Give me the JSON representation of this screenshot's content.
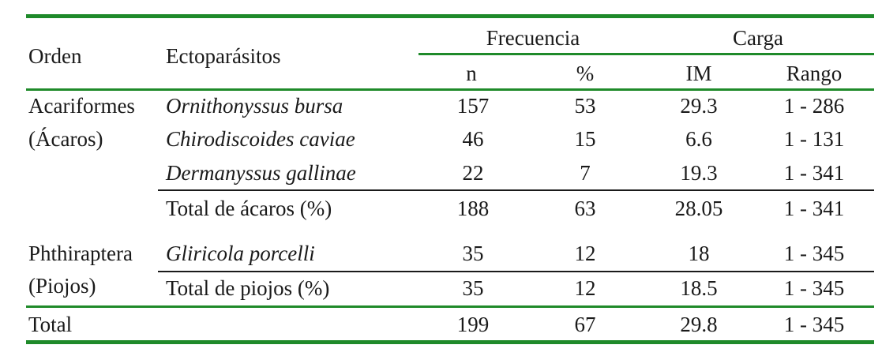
{
  "headers": {
    "orden": "Orden",
    "ectoparasitos": "Ectoparásitos",
    "frecuencia": "Frecuencia",
    "carga": "Carga",
    "n": "n",
    "pct": "%",
    "im": "IM",
    "rango": "Rango"
  },
  "groups": [
    {
      "order_line1": "Acariformes",
      "order_line2": "(Ácaros)",
      "rows": [
        {
          "name": "Ornithonyssus bursa",
          "n": "157",
          "pct": "53",
          "im": "29.3",
          "rango": "1 - 286"
        },
        {
          "name": "Chirodiscoides caviae",
          "n": "46",
          "pct": "15",
          "im": "6.6",
          "rango": "1 - 131"
        },
        {
          "name": "Dermanyssus gallinae",
          "n": "22",
          "pct": "7",
          "im": "19.3",
          "rango": "1 - 341"
        }
      ],
      "total": {
        "name": "Total de ácaros (%)",
        "n": "188",
        "pct": "63",
        "im": "28.05",
        "rango": "1 - 341"
      }
    },
    {
      "order_line1": "Phthiraptera",
      "order_line2": "(Piojos)",
      "rows": [
        {
          "name": "Gliricola porcelli",
          "n": "35",
          "pct": "12",
          "im": "18",
          "rango": "1 - 345"
        }
      ],
      "total": {
        "name": "Total de piojos (%)",
        "n": "35",
        "pct": "12",
        "im": "18.5",
        "rango": "1 - 345"
      }
    }
  ],
  "grand_total": {
    "label": "Total",
    "n": "199",
    "pct": "67",
    "im": "29.8",
    "rango": "1 - 345"
  },
  "colors": {
    "rule": "#1f8a2a",
    "text": "#1a1a1a"
  }
}
